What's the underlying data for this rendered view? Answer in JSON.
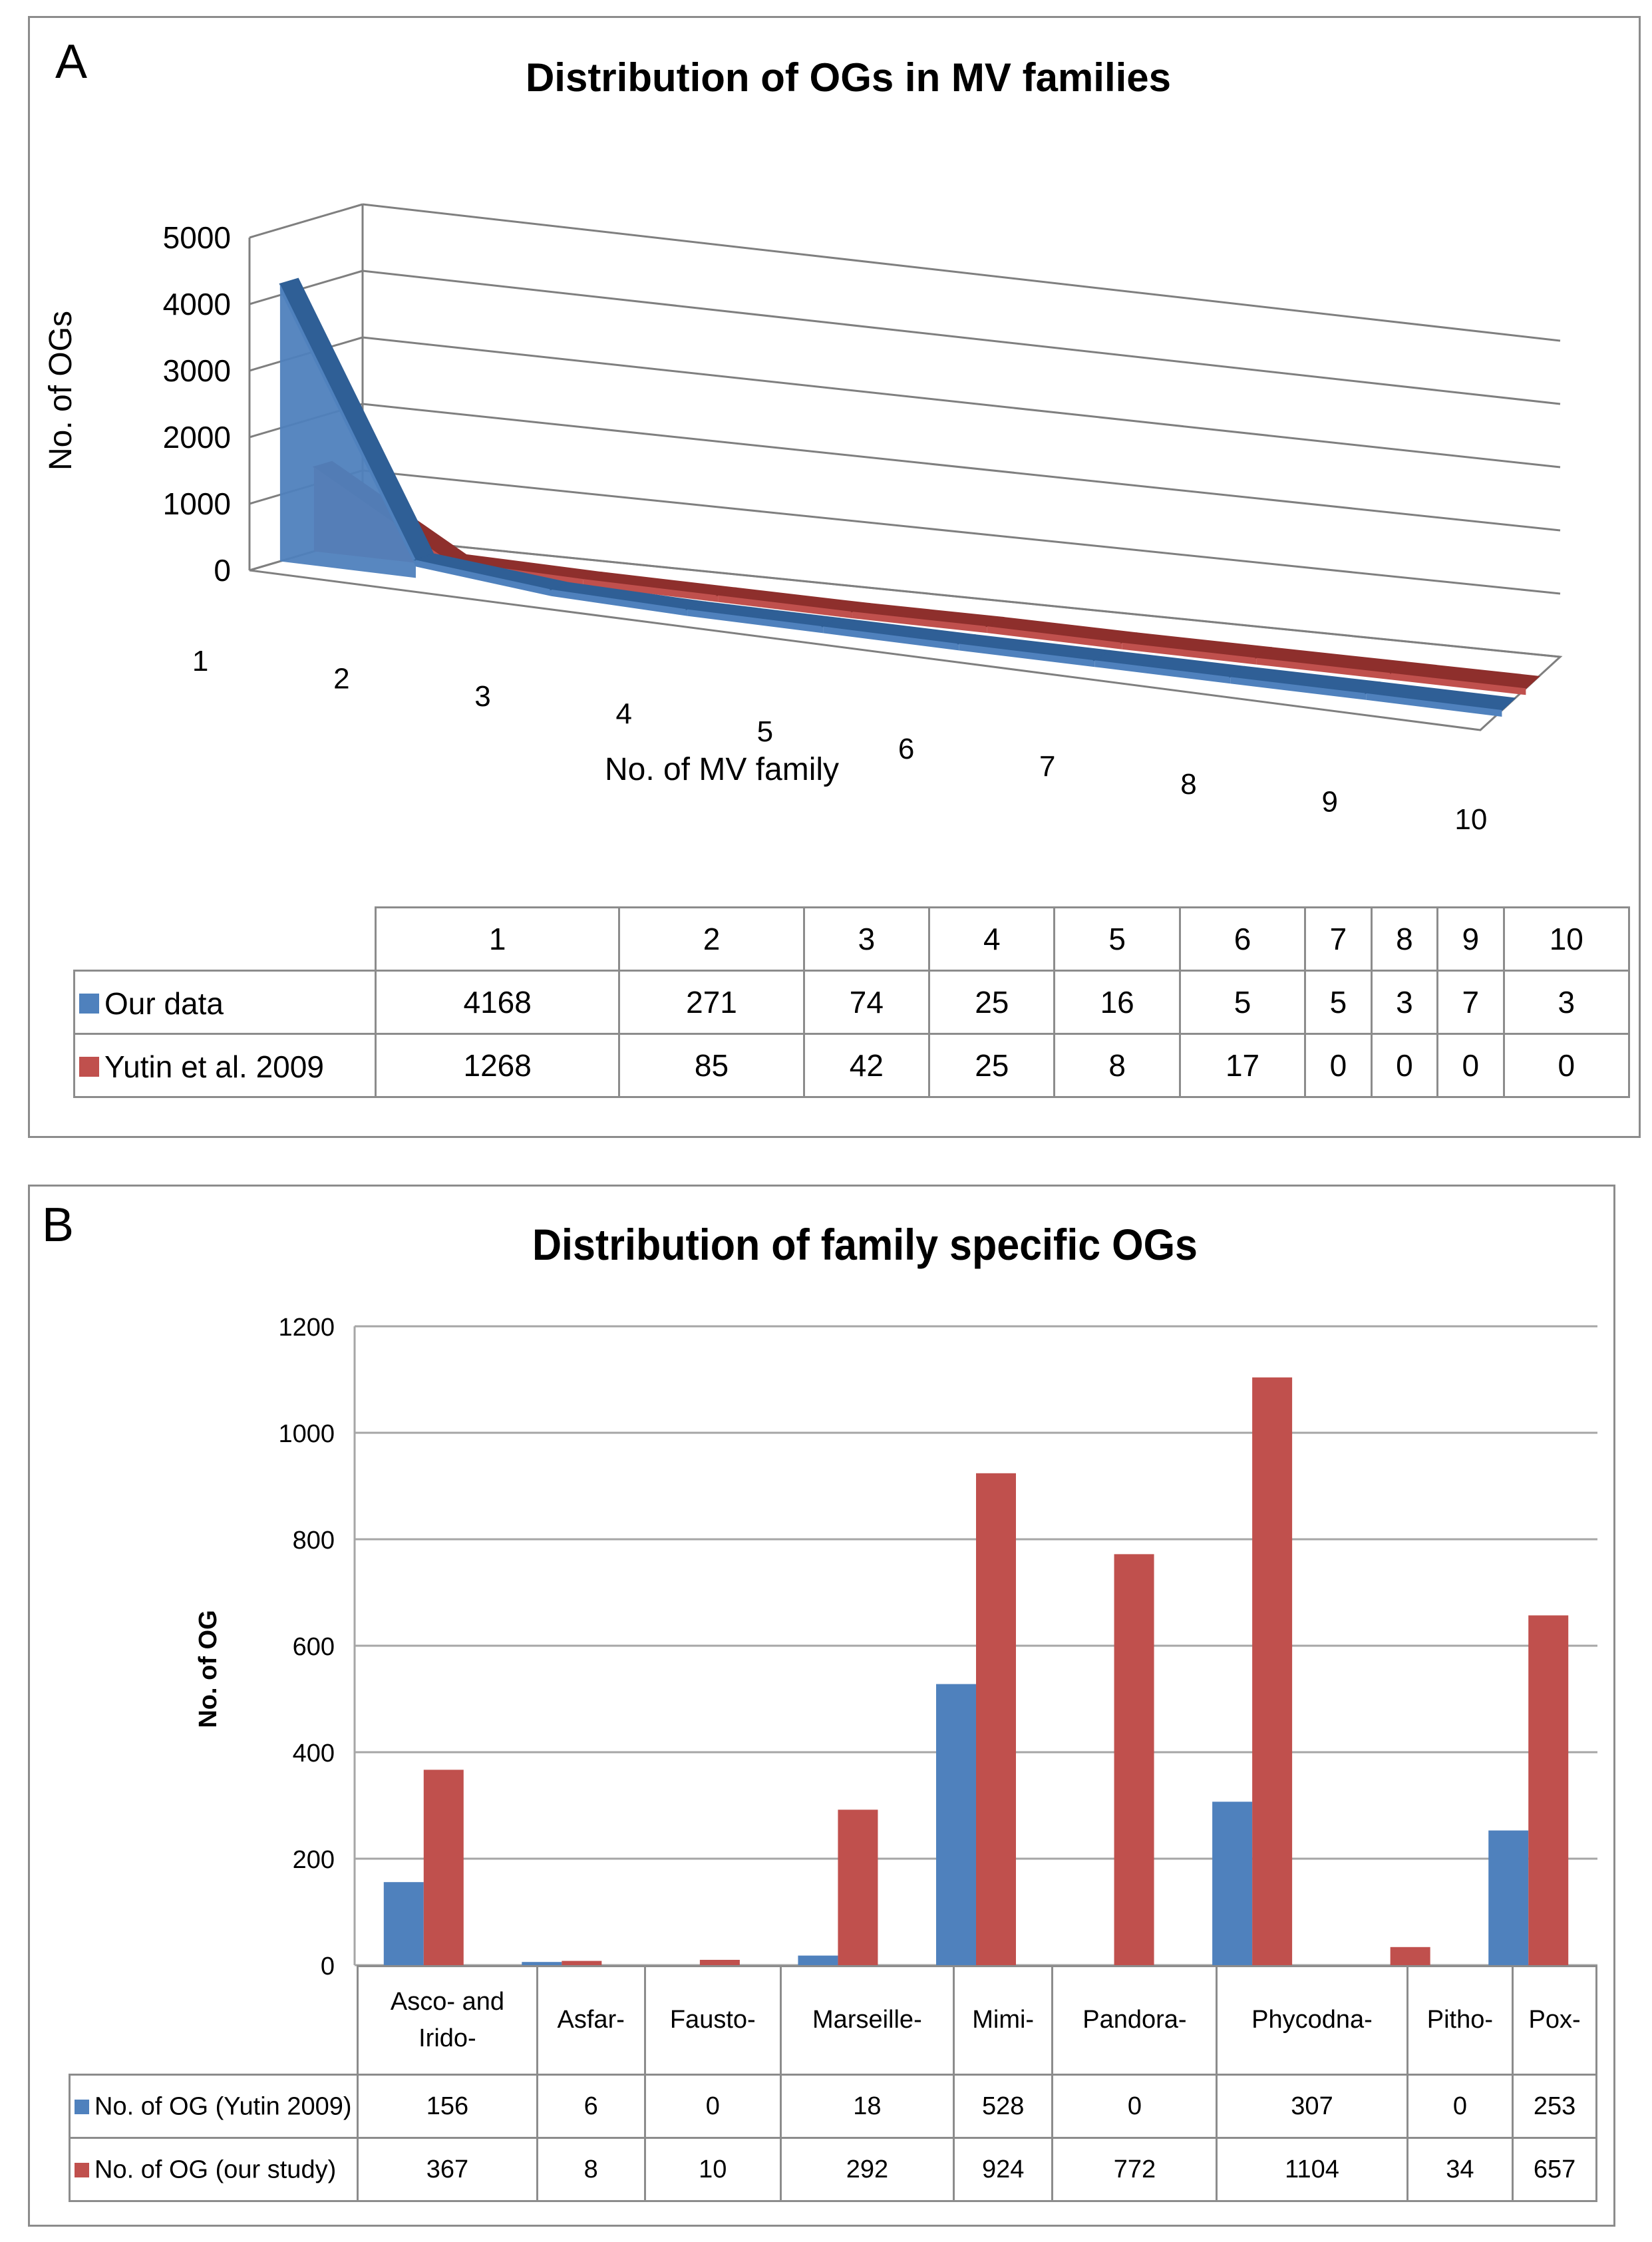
{
  "colors": {
    "series1": "#4f81bd",
    "series2": "#c0504d",
    "grid": "#a6a6a6",
    "border": "#8c8c8c"
  },
  "panelA": {
    "letter": "A",
    "chart_data": {
      "type": "line",
      "style": "3d-ribbon",
      "title": "Distribution of OGs in MV families",
      "xlabel": "No. of MV family",
      "ylabel": "No. of OGs",
      "categories": [
        "1",
        "2",
        "3",
        "4",
        "5",
        "6",
        "7",
        "8",
        "9",
        "10"
      ],
      "yticks": [
        "0",
        "1000",
        "2000",
        "3000",
        "4000",
        "5000"
      ],
      "ylim": [
        0,
        5000
      ],
      "series": [
        {
          "name": "Our data",
          "values": [
            4168,
            271,
            74,
            25,
            16,
            5,
            5,
            3,
            7,
            3
          ]
        },
        {
          "name": "Yutin et al. 2009",
          "values": [
            1268,
            85,
            42,
            25,
            8,
            17,
            0,
            0,
            0,
            0
          ]
        }
      ]
    },
    "table": {
      "header": [
        "1",
        "2",
        "3",
        "4",
        "5",
        "6",
        "7",
        "8",
        "9",
        "10"
      ],
      "rows": [
        {
          "label": "Our data",
          "cells": [
            "4168",
            "271",
            "74",
            "25",
            "16",
            "5",
            "5",
            "3",
            "7",
            "3"
          ]
        },
        {
          "label": "Yutin et al. 2009",
          "cells": [
            "1268",
            "85",
            "42",
            "25",
            "8",
            "17",
            "0",
            "0",
            "0",
            "0"
          ]
        }
      ]
    }
  },
  "panelB": {
    "letter": "B",
    "chart_data": {
      "type": "bar",
      "title": "Distribution of family specific OGs",
      "xlabel": "",
      "ylabel": "No. of OG",
      "categories": [
        "Asco- and Irido-",
        "Asfar-",
        "Fausto-",
        "Marseille-",
        "Mimi-",
        "Pandora-",
        "Phycodna-",
        "Pitho-",
        "Pox-"
      ],
      "category_lines": [
        [
          "Asco- and",
          "Irido-"
        ],
        [
          "Asfar-"
        ],
        [
          "Fausto-"
        ],
        [
          "Marseille-"
        ],
        [
          "Mimi-"
        ],
        [
          "Pandora-"
        ],
        [
          "Phycodna-"
        ],
        [
          "Pitho-"
        ],
        [
          "Pox-"
        ]
      ],
      "yticks": [
        "0",
        "200",
        "400",
        "600",
        "800",
        "1000",
        "1200"
      ],
      "ylim": [
        0,
        1200
      ],
      "series": [
        {
          "name": "No. of OG (Yutin 2009)",
          "values": [
            156,
            6,
            0,
            18,
            528,
            0,
            307,
            0,
            253
          ]
        },
        {
          "name": "No. of OG (our study)",
          "values": [
            367,
            8,
            10,
            292,
            924,
            772,
            1104,
            34,
            657
          ]
        }
      ]
    },
    "table": {
      "rows": [
        {
          "label": "No. of OG (Yutin 2009)",
          "cells": [
            "156",
            "6",
            "0",
            "18",
            "528",
            "0",
            "307",
            "0",
            "253"
          ]
        },
        {
          "label": "No. of OG (our study)",
          "cells": [
            "367",
            "8",
            "10",
            "292",
            "924",
            "772",
            "1104",
            "34",
            "657"
          ]
        }
      ]
    }
  }
}
